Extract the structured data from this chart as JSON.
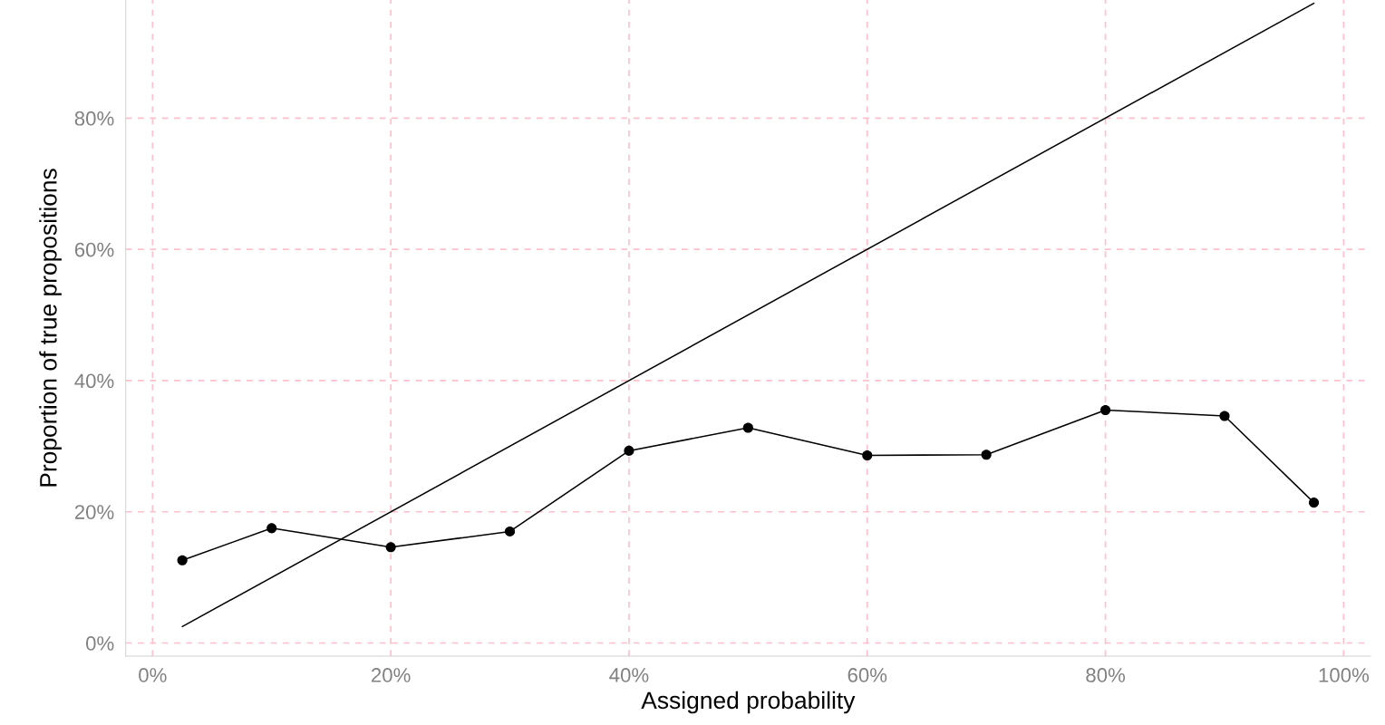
{
  "chart_data": {
    "type": "line",
    "xlabel": "Assigned probability",
    "ylabel": "Proportion of true propositions",
    "xlim": [
      -2.25,
      102.25
    ],
    "ylim": [
      -2,
      98
    ],
    "xticks": [
      {
        "value": 0,
        "label": "0%"
      },
      {
        "value": 20,
        "label": "20%"
      },
      {
        "value": 40,
        "label": "40%"
      },
      {
        "value": 60,
        "label": "60%"
      },
      {
        "value": 80,
        "label": "80%"
      },
      {
        "value": 100,
        "label": "100%"
      }
    ],
    "yticks": [
      {
        "value": 0,
        "label": "0%"
      },
      {
        "value": 20,
        "label": "20%"
      },
      {
        "value": 40,
        "label": "40%"
      },
      {
        "value": 60,
        "label": "60%"
      },
      {
        "value": 80,
        "label": "80%"
      }
    ],
    "grid": true,
    "line_style": "solid",
    "series": [
      {
        "color": "#000000",
        "marker": "none",
        "x": [
          2.5,
          97.5
        ],
        "values": [
          2.5,
          97.5
        ]
      },
      {
        "color": "#000000",
        "marker": "circle",
        "x": [
          2.5,
          10,
          20,
          30,
          40,
          50,
          60,
          70,
          80,
          90,
          97.5
        ],
        "values": [
          12.6,
          17.5,
          14.6,
          17.0,
          29.3,
          32.8,
          28.6,
          28.7,
          35.5,
          34.6,
          21.4
        ]
      }
    ]
  }
}
